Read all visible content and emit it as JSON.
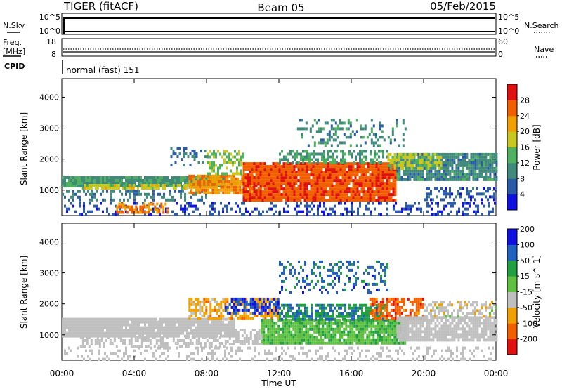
{
  "header": {
    "station": "TIGER (fitACF)",
    "beam": "Beam 05",
    "date": "05/Feb/2015"
  },
  "top_panels": {
    "nsky_label": "N.Sky",
    "nsearch_label": "N.Search",
    "nsky_ticks": [
      "10^5",
      "10^0"
    ],
    "nsearch_ticks": [
      "10^5",
      "10^0"
    ],
    "freq_label_1": "Freq.",
    "freq_label_2": "[MHz]",
    "freq_ticks": [
      "18",
      "8"
    ],
    "nave_label": "Nave",
    "nave_ticks": [
      "60",
      "0"
    ],
    "cpid_label": "CPID",
    "cpid_value": "normal (fast) 151"
  },
  "colors": {
    "power_scale": [
      "#1010e0",
      "#2a5aa8",
      "#3f8a7a",
      "#4fb060",
      "#c8c820",
      "#f0a000",
      "#f06000",
      "#e01010"
    ],
    "velocity_scale": [
      "#e01010",
      "#f06000",
      "#f0a000",
      "#c0c0c0",
      "#60c040",
      "#20a040",
      "#2060c0",
      "#1010e0"
    ],
    "ground_scatter": "#bfbfbf"
  },
  "chart_data": [
    {
      "type": "heatmap",
      "title": "Power",
      "xlabel": "Time UT",
      "ylabel": "Slant Range [km]",
      "x_ticks": [
        "00:00",
        "04:00",
        "08:00",
        "12:00",
        "16:00",
        "20:00",
        "00:00"
      ],
      "xlim_hours": [
        0,
        24
      ],
      "ylim": [
        180,
        4600
      ],
      "y_ticks": [
        1000,
        2000,
        3000,
        4000
      ],
      "colorbar_label": "Power [dB]",
      "colorbar_ticks": [
        4,
        8,
        12,
        16,
        20,
        24,
        28
      ],
      "colorbar_range": [
        0,
        32
      ],
      "regions": [
        {
          "h0": 0,
          "h1": 24,
          "r0": 180,
          "r1": 620,
          "dens": 0.3,
          "v": 5
        },
        {
          "h0": 0,
          "h1": 9,
          "r0": 1150,
          "r1": 1450,
          "dens": 0.95,
          "v": 11
        },
        {
          "h0": 1,
          "h1": 7,
          "r0": 1050,
          "r1": 1200,
          "dens": 0.7,
          "v": 18
        },
        {
          "h0": 3,
          "h1": 6,
          "r0": 300,
          "r1": 600,
          "dens": 0.6,
          "v": 24
        },
        {
          "h0": 0,
          "h1": 8,
          "r0": 700,
          "r1": 1000,
          "dens": 0.4,
          "v": 8
        },
        {
          "h0": 7,
          "h1": 11,
          "r0": 900,
          "r1": 1500,
          "dens": 0.9,
          "v": 23
        },
        {
          "h0": 8,
          "h1": 10,
          "r0": 1500,
          "r1": 2300,
          "dens": 0.5,
          "v": 16
        },
        {
          "h0": 10,
          "h1": 18.5,
          "r0": 700,
          "r1": 1900,
          "dens": 0.95,
          "v": 27
        },
        {
          "h0": 12,
          "h1": 18,
          "r0": 1900,
          "r1": 2300,
          "dens": 0.5,
          "v": 12
        },
        {
          "h0": 13,
          "h1": 19,
          "r0": 2400,
          "r1": 3300,
          "dens": 0.25,
          "v": 10
        },
        {
          "h0": 18.5,
          "h1": 24,
          "r0": 1300,
          "r1": 2200,
          "dens": 0.9,
          "v": 10
        },
        {
          "h0": 18,
          "h1": 21,
          "r0": 1700,
          "r1": 2200,
          "dens": 0.7,
          "v": 17
        },
        {
          "h0": 20,
          "h1": 24,
          "r0": 700,
          "r1": 1100,
          "dens": 0.4,
          "v": 6
        },
        {
          "h0": 6,
          "h1": 8,
          "r0": 1800,
          "r1": 2400,
          "dens": 0.3,
          "v": 8
        }
      ]
    },
    {
      "type": "heatmap",
      "title": "Velocity",
      "xlabel": "Time UT",
      "ylabel": "Slant Range [km]",
      "x_ticks": [
        "00:00",
        "04:00",
        "08:00",
        "12:00",
        "16:00",
        "20:00",
        "00:00"
      ],
      "xlim_hours": [
        0,
        24
      ],
      "ylim": [
        180,
        4600
      ],
      "y_ticks": [
        1000,
        2000,
        3000,
        4000
      ],
      "colorbar_label": "Velocity [m s^-1]",
      "colorbar_ticks": [
        -200,
        -100,
        -50,
        -15,
        15,
        50,
        100,
        200
      ],
      "colorbar_range": [
        -250,
        250
      ],
      "regions": [
        {
          "h0": 0,
          "h1": 24,
          "r0": 180,
          "r1": 620,
          "dens": 0.25,
          "v": 0,
          "g": true
        },
        {
          "h0": 0,
          "h1": 9.5,
          "r0": 1000,
          "r1": 1550,
          "dens": 0.95,
          "v": 0,
          "g": true
        },
        {
          "h0": 1,
          "h1": 9,
          "r0": 650,
          "r1": 950,
          "dens": 0.5,
          "v": 0,
          "g": true
        },
        {
          "h0": 7,
          "h1": 12,
          "r0": 1500,
          "r1": 2200,
          "dens": 0.6,
          "v": -90
        },
        {
          "h0": 9,
          "h1": 12,
          "r0": 1700,
          "r1": 2200,
          "dens": 0.6,
          "v": 180
        },
        {
          "h0": 11,
          "h1": 19,
          "r0": 700,
          "r1": 1500,
          "dens": 0.9,
          "v": 45
        },
        {
          "h0": 12,
          "h1": 18,
          "r0": 1500,
          "r1": 2000,
          "dens": 0.7,
          "v": 110
        },
        {
          "h0": 12,
          "h1": 18,
          "r0": 2400,
          "r1": 3400,
          "dens": 0.25,
          "v": 150
        },
        {
          "h0": 17,
          "h1": 20,
          "r0": 1500,
          "r1": 2200,
          "dens": 0.6,
          "v": -160
        },
        {
          "h0": 18.5,
          "h1": 24,
          "r0": 800,
          "r1": 1600,
          "dens": 0.85,
          "v": 0,
          "g": true
        },
        {
          "h0": 20,
          "h1": 24,
          "r0": 1600,
          "r1": 2100,
          "dens": 0.5,
          "v": -40
        },
        {
          "h0": 9,
          "h1": 11,
          "r0": 700,
          "r1": 1200,
          "dens": 0.6,
          "v": 0,
          "g": true
        }
      ]
    }
  ]
}
